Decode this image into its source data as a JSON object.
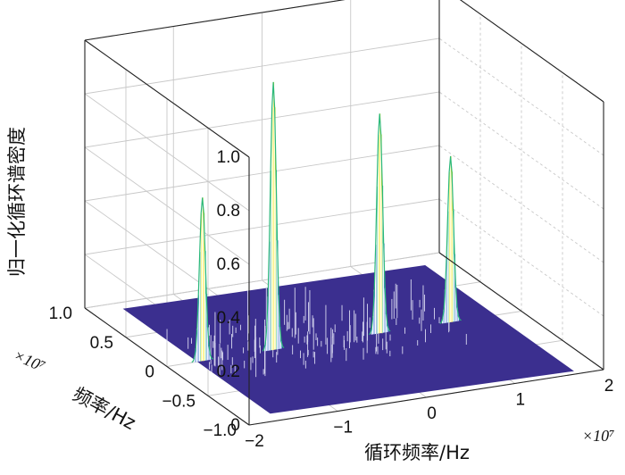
{
  "chart_data": {
    "type": "surface",
    "zlabel": "归一化循环谱密度",
    "xlabel": "循环频率/Hz",
    "ylabel": "频率/Hz",
    "x_exponent_label": "×10⁷",
    "y_exponent_label": "×10⁷",
    "zlim": [
      0,
      1.0
    ],
    "xlim": [
      -2,
      2
    ],
    "ylim": [
      -1.0,
      1.0
    ],
    "z_ticks": [
      "0",
      "0.2",
      "0.4",
      "0.6",
      "0.8",
      "1.0"
    ],
    "x_ticks": [
      "−2",
      "−1",
      "0",
      "1",
      "2"
    ],
    "y_ticks": [
      "−1.0",
      "−0.5",
      "0",
      "0.5",
      "1.0"
    ],
    "grid": true,
    "surface_color": "#3b2f8f",
    "peak_colors": [
      "#f5e60a",
      "#2ab87a",
      "#3a6fd8"
    ],
    "peaks": [
      {
        "x": -1.6,
        "y": 0.0,
        "z": 0.61
      },
      {
        "x": -0.8,
        "y": 0.0,
        "z": 1.0
      },
      {
        "x": 0.4,
        "y": 0.0,
        "z": 0.82
      },
      {
        "x": 1.2,
        "y": 0.0,
        "z": 0.62
      }
    ]
  }
}
